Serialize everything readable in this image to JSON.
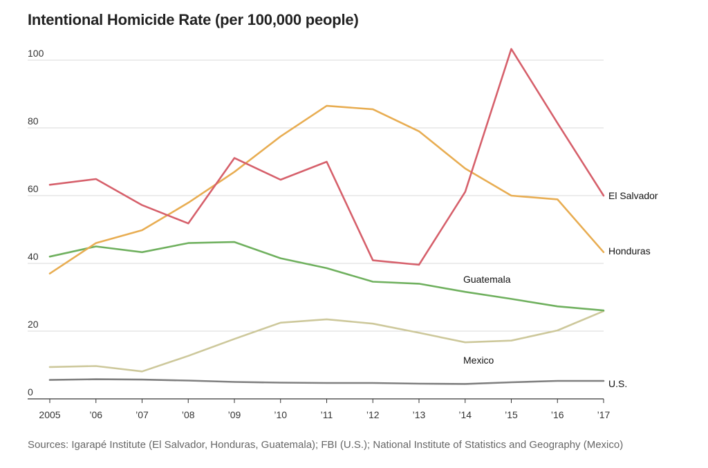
{
  "chart_data": {
    "type": "line",
    "title": "Intentional Homicide Rate (per 100,000 people)",
    "xlabel": "",
    "ylabel": "",
    "categories": [
      "2005",
      "’06",
      "’07",
      "’08",
      "’09",
      "’10",
      "’11",
      "’12",
      "’13",
      "’14",
      "’15",
      "’16",
      "’17"
    ],
    "ylim": [
      0,
      105
    ],
    "yticks": [
      0,
      20,
      40,
      60,
      80,
      100
    ],
    "grid": true,
    "legend": "direct-labels",
    "series": [
      {
        "name": "El Salvador",
        "color": "#d6606b",
        "values": [
          63.2,
          64.9,
          57.2,
          51.8,
          71.1,
          64.7,
          70.0,
          40.9,
          39.6,
          61.1,
          103.3,
          81.4,
          60.0
        ]
      },
      {
        "name": "Honduras",
        "color": "#e8ad52",
        "values": [
          37.0,
          46.0,
          49.8,
          57.9,
          67.0,
          77.5,
          86.5,
          85.5,
          79.0,
          68.0,
          60.0,
          58.9,
          43.3
        ]
      },
      {
        "name": "Guatemala",
        "color": "#6fb05e",
        "values": [
          42.0,
          45.0,
          43.3,
          46.0,
          46.3,
          41.5,
          38.6,
          34.6,
          34.0,
          31.6,
          29.5,
          27.3,
          26.1
        ]
      },
      {
        "name": "Mexico",
        "color": "#cdc89b",
        "values": [
          9.4,
          9.7,
          8.1,
          12.7,
          17.7,
          22.5,
          23.5,
          22.2,
          19.5,
          16.7,
          17.2,
          20.2,
          25.9
        ]
      },
      {
        "name": "U.S.",
        "color": "#7f7f7f",
        "values": [
          5.6,
          5.8,
          5.7,
          5.4,
          5.0,
          4.8,
          4.7,
          4.7,
          4.5,
          4.4,
          4.9,
          5.3,
          5.3
        ]
      }
    ]
  },
  "source": "Sources:  Igarapé Institute (El Salvador, Honduras, Guatemala); FBI (U.S.); National Institute of Statistics and Geography (Mexico)"
}
